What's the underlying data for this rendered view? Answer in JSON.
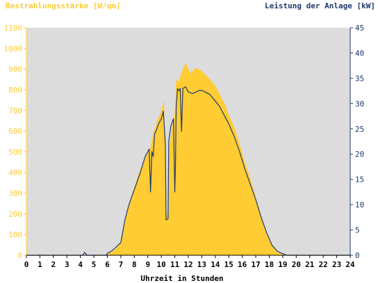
{
  "chart_data": {
    "type": "area",
    "y_left_label": "Bestrahlungsstärke [W/qm]",
    "y_right_label": "Leistung der Anlage [kW]",
    "x_label": "Uhrzeit in Stunden",
    "xlim": [
      0,
      24
    ],
    "ylim_left": [
      0,
      1100
    ],
    "ylim_right": [
      0,
      45
    ],
    "x_ticks": [
      "0",
      "1",
      "2",
      "3",
      "4",
      "5",
      "6",
      "7",
      "8",
      "9",
      "10",
      "11",
      "12",
      "13",
      "14",
      "15",
      "16",
      "17",
      "18",
      "19",
      "20",
      "21",
      "22",
      "23",
      "24"
    ],
    "y_left_ticks": [
      "0",
      "100",
      "200",
      "300",
      "400",
      "500",
      "600",
      "700",
      "800",
      "900",
      "1000",
      "1100"
    ],
    "y_right_ticks": [
      "0",
      "5",
      "10",
      "15",
      "20",
      "25",
      "30",
      "35",
      "40",
      "45"
    ],
    "grid": false,
    "colors": {
      "plot_bg": "#dcdcdc",
      "irradiance_fill": "#ffcc33",
      "power_line": "#1f3a6e",
      "left_axis": "#ffcc33",
      "right_axis": "#1f3a6e"
    },
    "series": [
      {
        "name": "Bestrahlungsstärke [W/qm]",
        "axis": "left",
        "style": "area",
        "x": [
          0,
          5.9,
          6.0,
          6.3,
          6.6,
          7.0,
          7.3,
          7.6,
          8.0,
          8.4,
          8.8,
          9.0,
          9.2,
          9.4,
          9.7,
          10.0,
          10.2,
          10.3,
          10.35,
          10.5,
          10.6,
          10.8,
          11.0,
          11.1,
          11.3,
          11.4,
          11.6,
          11.8,
          12.0,
          12.2,
          12.5,
          12.8,
          13.0,
          13.3,
          13.6,
          14.0,
          14.3,
          14.7,
          15.0,
          15.4,
          15.8,
          16.2,
          16.6,
          17.0,
          17.4,
          17.8,
          18.2,
          18.6,
          19.0,
          19.3,
          19.6,
          24
        ],
        "values": [
          0,
          0,
          5,
          15,
          30,
          60,
          160,
          250,
          330,
          410,
          470,
          500,
          520,
          590,
          650,
          700,
          750,
          400,
          200,
          190,
          520,
          620,
          690,
          850,
          840,
          860,
          900,
          930,
          900,
          880,
          905,
          900,
          890,
          870,
          850,
          820,
          780,
          730,
          680,
          620,
          540,
          450,
          370,
          280,
          190,
          110,
          50,
          15,
          5,
          0,
          0,
          0
        ]
      },
      {
        "name": "Leistung der Anlage [kW]",
        "axis": "right",
        "style": "line",
        "x": [
          0,
          4.2,
          4.3,
          4.4,
          4.5,
          5.9,
          6.0,
          6.3,
          6.6,
          7.0,
          7.3,
          7.6,
          8.0,
          8.4,
          8.8,
          9.0,
          9.1,
          9.2,
          9.3,
          9.4,
          9.5,
          9.6,
          9.8,
          10.0,
          10.15,
          10.3,
          10.35,
          10.5,
          10.55,
          10.7,
          10.9,
          11.0,
          11.05,
          11.1,
          11.2,
          11.3,
          11.4,
          11.5,
          11.6,
          11.8,
          12.0,
          12.3,
          12.6,
          12.8,
          13.0,
          13.3,
          13.6,
          14.0,
          14.3,
          14.7,
          15.0,
          15.4,
          15.8,
          16.2,
          16.6,
          17.0,
          17.4,
          17.8,
          18.2,
          18.6,
          19.0,
          19.3,
          19.6,
          24
        ],
        "values": [
          0,
          0,
          0.6,
          0.3,
          0,
          0,
          0.4,
          0.8,
          1.5,
          2.5,
          7,
          10,
          13,
          16,
          19.5,
          20.5,
          21,
          12.5,
          20.5,
          19.5,
          24,
          24.5,
          26,
          27,
          28.5,
          22,
          7,
          7.2,
          22.5,
          25.5,
          27,
          12.5,
          18,
          29,
          33,
          32.5,
          33,
          24.5,
          33,
          33.3,
          32.3,
          32,
          32.3,
          32.6,
          32.6,
          32.2,
          31.8,
          30.5,
          29.5,
          27.5,
          26,
          23.5,
          20.5,
          17,
          14,
          11,
          7.5,
          4.5,
          2,
          0.8,
          0.3,
          0,
          0,
          0
        ]
      }
    ]
  }
}
